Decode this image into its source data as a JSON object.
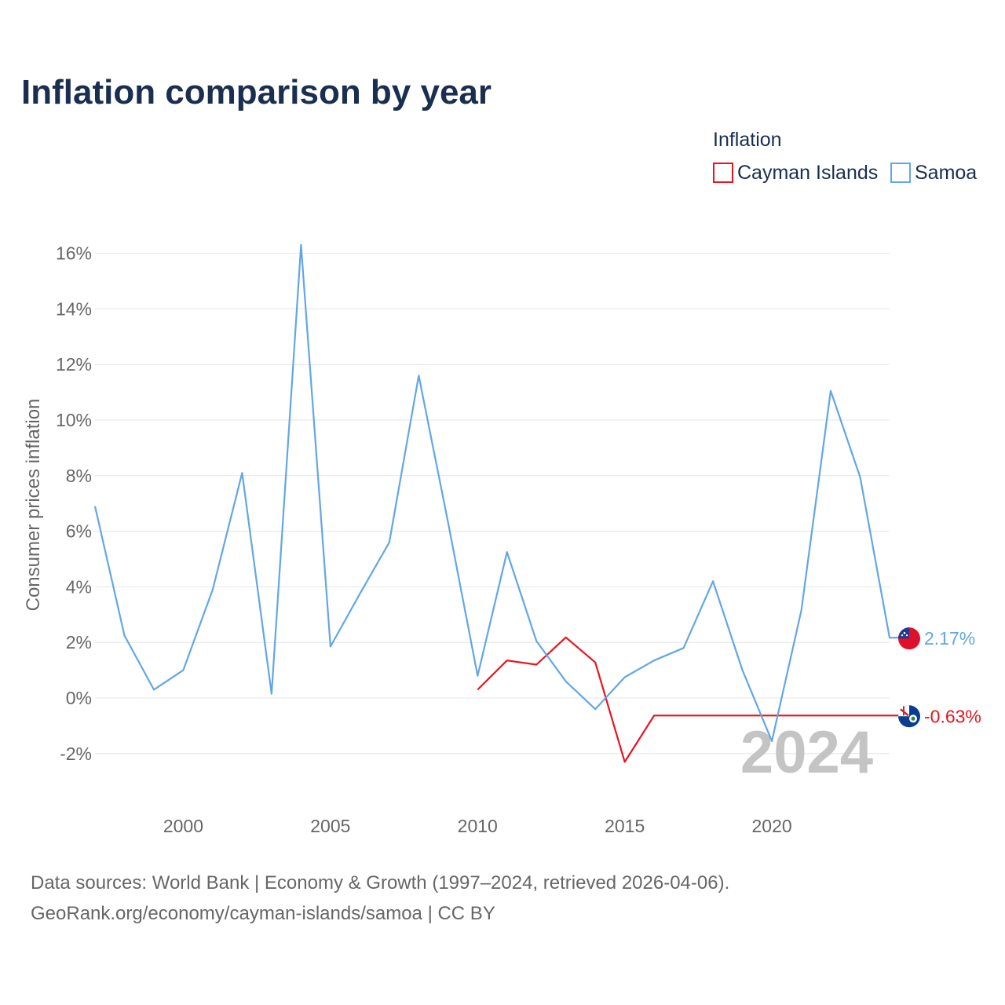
{
  "title": "Inflation comparison by year",
  "legend": {
    "title": "Inflation",
    "items": [
      {
        "label": "Cayman Islands",
        "color": "#e8141f"
      },
      {
        "label": "Samoa",
        "color": "#63a6e6"
      }
    ]
  },
  "watermark_year": "2024",
  "footer": {
    "line1": "Data sources: World Bank | Economy & Growth (1997–2024, retrieved 2026-04-06).",
    "line2": "GeoRank.org/economy/cayman-islands/samoa | CC BY"
  },
  "chart_data": {
    "type": "line",
    "title": "Inflation comparison by year",
    "xlabel": "",
    "ylabel": "Consumer prices inflation",
    "xlim": [
      1997,
      2024
    ],
    "ylim": [
      -3.5,
      17
    ],
    "x_ticks": [
      2000,
      2005,
      2010,
      2015,
      2020
    ],
    "x_tick_labels": [
      "2000",
      "2005",
      "2010",
      "2015",
      "2020"
    ],
    "y_ticks": [
      -2,
      0,
      2,
      4,
      6,
      8,
      10,
      12,
      14,
      16
    ],
    "y_tick_labels": [
      "-2%",
      "0%",
      "2%",
      "4%",
      "6%",
      "8%",
      "10%",
      "12%",
      "14%",
      "16%"
    ],
    "grid": true,
    "legend_position": "top-right",
    "series": [
      {
        "name": "Cayman Islands",
        "color": "#e8141f",
        "end_label": "-0.63%",
        "flag": "cayman-islands-flag-icon",
        "points": [
          [
            2010,
            0.3
          ],
          [
            2011,
            1.35
          ],
          [
            2012,
            1.2
          ],
          [
            2013,
            2.18
          ],
          [
            2014,
            1.28
          ],
          [
            2015,
            -2.3
          ],
          [
            2016,
            -0.63
          ],
          [
            2017,
            -0.63
          ],
          [
            2018,
            -0.63
          ],
          [
            2019,
            -0.63
          ],
          [
            2020,
            -0.63
          ],
          [
            2021,
            -0.63
          ],
          [
            2022,
            -0.63
          ],
          [
            2023,
            -0.63
          ],
          [
            2024,
            -0.63
          ]
        ]
      },
      {
        "name": "Samoa",
        "color": "#63a6e6",
        "end_label": "2.17%",
        "flag": "samoa-flag-icon",
        "points": [
          [
            1997,
            6.9
          ],
          [
            1998,
            2.25
          ],
          [
            1999,
            0.3
          ],
          [
            2000,
            1.0
          ],
          [
            2001,
            3.9
          ],
          [
            2002,
            8.1
          ],
          [
            2003,
            0.15
          ],
          [
            2004,
            16.3
          ],
          [
            2005,
            1.85
          ],
          [
            2006,
            3.75
          ],
          [
            2007,
            5.6
          ],
          [
            2008,
            11.6
          ],
          [
            2009,
            6.3
          ],
          [
            2010,
            0.8
          ],
          [
            2011,
            5.25
          ],
          [
            2012,
            2.05
          ],
          [
            2013,
            0.6
          ],
          [
            2014,
            -0.4
          ],
          [
            2015,
            0.75
          ],
          [
            2016,
            1.35
          ],
          [
            2017,
            1.8
          ],
          [
            2018,
            4.2
          ],
          [
            2019,
            1.0
          ],
          [
            2020,
            -1.55
          ],
          [
            2021,
            3.15
          ],
          [
            2022,
            11.05
          ],
          [
            2023,
            7.95
          ],
          [
            2024,
            2.17
          ]
        ]
      }
    ]
  }
}
